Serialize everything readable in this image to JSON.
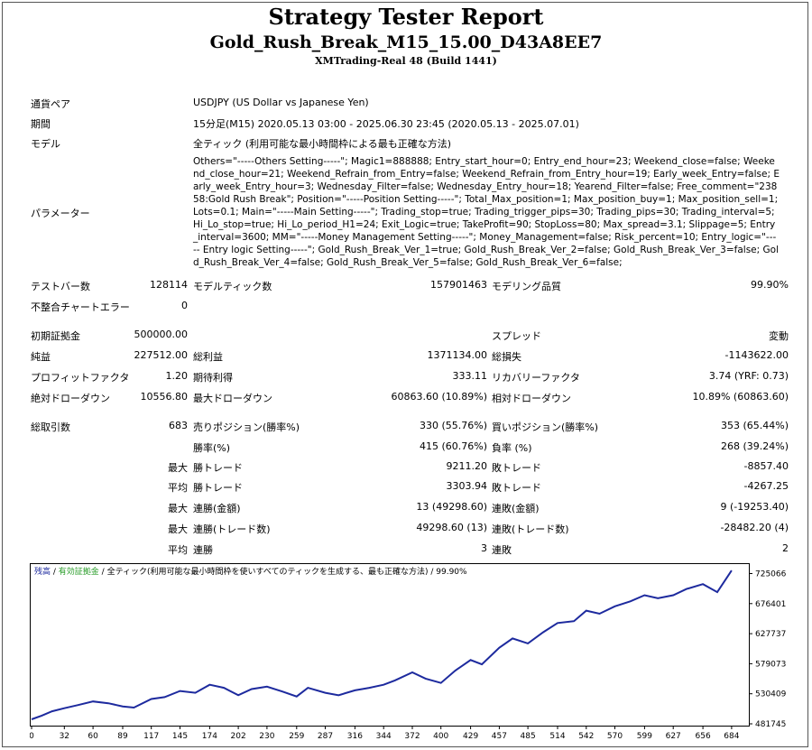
{
  "header": {
    "title": "Strategy Tester Report",
    "expert": "Gold_Rush_Break_M15_15.00_D43A8EE7",
    "server": "XMTrading-Real 48 (Build 1441)"
  },
  "info": {
    "symbol_label": "通貨ペア",
    "symbol_value": "USDJPY (US Dollar vs Japanese Yen)",
    "period_label": "期間",
    "period_value": "15分足(M15) 2020.05.13 03:00 - 2025.06.30 23:45 (2020.05.13 - 2025.07.01)",
    "model_label": "モデル",
    "model_value": "全ティック (利用可能な最小時間枠による最も正確な方法)",
    "params_label": "パラメーター",
    "params_value": "Others=\"-----Others Setting-----\"; Magic1=888888; Entry_start_hour=0; Entry_end_hour=23; Weekend_close=false; Weekend_close_hour=21; Weekend_Refrain_from_Entry=false; Weekend_Refrain_from_Entry_hour=19; Early_week_Entry=false; Early_week_Entry_hour=3; Wednesday_Filter=false; Wednesday_Entry_hour=18; Yearend_Filter=false; Free_comment=\"23858:Gold Rush Break\"; Position=\"-----Position Setting-----\"; Total_Max_position=1; Max_position_buy=1; Max_position_sell=1; Lots=0.1; Main=\"-----Main Setting-----\"; Trading_stop=true; Trading_trigger_pips=30; Trading_pips=30; Trading_interval=5; Hi_Lo_stop=true; Hi_Lo_period_H1=24; Exit_Logic=true; TakeProfit=90; StopLoss=80; Max_spread=3.1; Slippage=5; Entry_interval=3600; MM=\"-----Money Management Setting-----\"; Money_Management=false; Risk_percent=10; Entry_logic=\"----- Entry logic Setting-----\"; Gold_Rush_Break_Ver_1=true; Gold_Rush_Break_Ver_2=false; Gold_Rush_Break_Ver_3=false; Gold_Rush_Break_Ver_4=false; Gold_Rush_Break_Ver_5=false; Gold_Rush_Break_Ver_6=false;"
  },
  "stats": {
    "bars_label": "テストバー数",
    "bars": "128114",
    "ticks_label": "モデルティック数",
    "ticks": "157901463",
    "quality_label": "モデリング品質",
    "quality": "99.90%",
    "mismatch_label": "不整合チャートエラー",
    "mismatch": "0",
    "deposit_label": "初期証拠金",
    "deposit": "500000.00",
    "spread_label": "スプレッド",
    "spread": "変動",
    "net_label": "純益",
    "net": "227512.00",
    "gross_profit_label": "総利益",
    "gross_profit": "1371134.00",
    "gross_loss_label": "総損失",
    "gross_loss": "-1143622.00",
    "pf_label": "プロフィットファクタ",
    "pf": "1.20",
    "expected_label": "期待利得",
    "expected": "333.11",
    "recovery_label": "リカバリーファクタ",
    "recovery": "3.74 (YRF: 0.73)",
    "abs_dd_label": "絶対ドローダウン",
    "abs_dd": "10556.80",
    "max_dd_label": "最大ドローダウン",
    "max_dd": "60863.60 (10.89%)",
    "rel_dd_label": "相対ドローダウン",
    "rel_dd": "10.89% (60863.60)",
    "trades_label": "総取引数",
    "trades": "683",
    "short_label": "売りポジション(勝率%)",
    "short": "330 (55.76%)",
    "long_label": "買いポジション(勝率%)",
    "long": "353 (65.44%)",
    "win_rate_label": "勝率(%)",
    "win_rate": "415 (60.76%)",
    "loss_rate_label": "負率 (%)",
    "loss_rate": "268 (39.24%)",
    "max_label": "最大",
    "avg_label": "平均",
    "largest_win_label": "勝トレード",
    "largest_win": "9211.20",
    "largest_loss_label": "敗トレード",
    "largest_loss": "-8857.40",
    "avg_win_label": "勝トレード",
    "avg_win": "3303.94",
    "avg_loss_label": "敗トレード",
    "avg_loss": "-4267.25",
    "max_consec_win_label": "連勝(金額)",
    "max_consec_win": "13 (49298.60)",
    "max_consec_loss_label": "連敗(金額)",
    "max_consec_loss": "9 (-19253.40)",
    "max_consec_profit_label": "連勝(トレード数)",
    "max_consec_profit": "49298.60 (13)",
    "max_consec_lossamt_label": "連敗(トレード数)",
    "max_consec_lossamt": "-28482.20 (4)",
    "avg_consec_win_label": "連勝",
    "avg_consec_win": "3",
    "avg_consec_loss_label": "連敗",
    "avg_consec_loss": "2"
  },
  "chart_legend": {
    "balance": "残高",
    "sep1": " / ",
    "equity": "有効証拠金",
    "sep2": " / ",
    "rest": "全ティック(利用可能な最小時間枠を使いすべてのティックを生成する、最も正確な方法) / 99.90%"
  },
  "chart_data": {
    "type": "line",
    "series": [
      {
        "name": "残高",
        "color": "#1d2a9e",
        "x": [
          0,
          10,
          20,
          32,
          45,
          60,
          75,
          89,
          100,
          117,
          130,
          145,
          160,
          174,
          188,
          202,
          215,
          230,
          245,
          259,
          270,
          287,
          300,
          316,
          330,
          344,
          355,
          372,
          385,
          400,
          414,
          429,
          440,
          457,
          470,
          485,
          500,
          514,
          530,
          542,
          555,
          570,
          585,
          599,
          612,
          627,
          640,
          656,
          670,
          684
        ],
        "y": [
          489000,
          495000,
          502000,
          507000,
          512000,
          518000,
          515000,
          510000,
          508000,
          522000,
          525000,
          535000,
          532000,
          545000,
          540000,
          528000,
          538000,
          542000,
          534000,
          526000,
          540000,
          532000,
          528000,
          536000,
          540000,
          545000,
          552000,
          565000,
          555000,
          548000,
          568000,
          585000,
          578000,
          605000,
          620000,
          612000,
          630000,
          645000,
          648000,
          665000,
          660000,
          672000,
          680000,
          690000,
          685000,
          690000,
          700000,
          708000,
          695000,
          730000
        ]
      }
    ],
    "xticks": [
      0,
      32,
      60,
      89,
      117,
      145,
      174,
      202,
      230,
      259,
      287,
      316,
      344,
      372,
      400,
      429,
      457,
      485,
      514,
      542,
      570,
      599,
      627,
      656,
      684
    ],
    "yticks": [
      481745,
      530409,
      579073,
      627737,
      676401,
      725066
    ],
    "ylim": [
      481745,
      736000
    ],
    "xlim": [
      0,
      700
    ],
    "grid": false
  }
}
